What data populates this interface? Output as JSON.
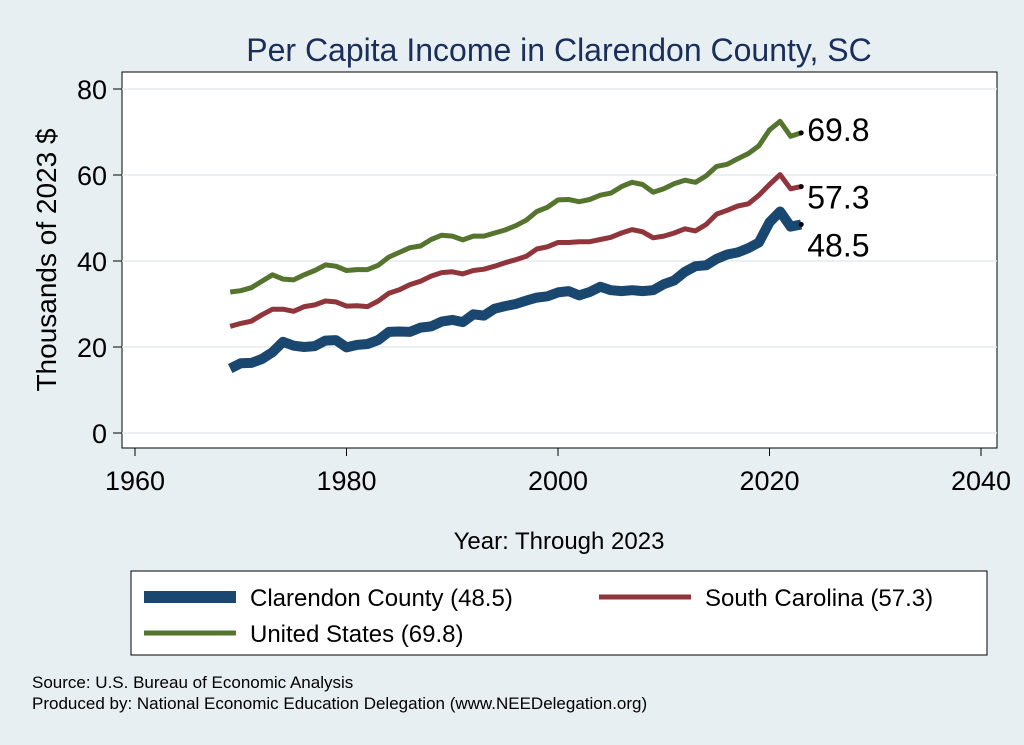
{
  "chart_data": {
    "type": "line",
    "title": "Per Capita Income in Clarendon County, SC",
    "xlabel": "Year: Through 2023",
    "ylabel": "Thousands of 2023 $",
    "xlim": [
      1960,
      2040
    ],
    "ylim": [
      0,
      80
    ],
    "x_ticks": [
      "1960",
      "1980",
      "2000",
      "2020",
      "2040"
    ],
    "y_ticks": [
      "0",
      "20",
      "40",
      "60",
      "80"
    ],
    "grid": true,
    "x": [
      1969,
      1970,
      1971,
      1972,
      1973,
      1974,
      1975,
      1976,
      1977,
      1978,
      1979,
      1980,
      1981,
      1982,
      1983,
      1984,
      1985,
      1986,
      1987,
      1988,
      1989,
      1990,
      1991,
      1992,
      1993,
      1994,
      1995,
      1996,
      1997,
      1998,
      1999,
      2000,
      2001,
      2002,
      2003,
      2004,
      2005,
      2006,
      2007,
      2008,
      2009,
      2010,
      2011,
      2012,
      2013,
      2014,
      2015,
      2016,
      2017,
      2018,
      2019,
      2020,
      2021,
      2022,
      2023
    ],
    "series": [
      {
        "name": "Clarendon County",
        "color": "#1a476f",
        "end_label": "48.5",
        "values": [
          15.0,
          16.2,
          16.3,
          17.2,
          18.8,
          21.2,
          20.3,
          20.0,
          20.2,
          21.5,
          21.6,
          19.9,
          20.5,
          20.7,
          21.6,
          23.5,
          23.6,
          23.5,
          24.5,
          24.8,
          25.9,
          26.3,
          25.8,
          27.6,
          27.3,
          28.9,
          29.5,
          30.0,
          30.8,
          31.5,
          31.8,
          32.7,
          33.0,
          32.0,
          32.8,
          34.0,
          33.2,
          33.0,
          33.2,
          33.0,
          33.2,
          34.6,
          35.5,
          37.5,
          38.8,
          39.0,
          40.5,
          41.5,
          42.0,
          43.0,
          44.3,
          49.0,
          51.5,
          48.0,
          48.5
        ]
      },
      {
        "name": "South Carolina",
        "color": "#90353b",
        "end_label": "57.3",
        "values": [
          24.8,
          25.5,
          26.0,
          27.5,
          28.8,
          28.8,
          28.3,
          29.4,
          29.8,
          30.7,
          30.5,
          29.5,
          29.6,
          29.4,
          30.7,
          32.5,
          33.3,
          34.5,
          35.3,
          36.5,
          37.3,
          37.5,
          37.0,
          37.8,
          38.1,
          38.8,
          39.6,
          40.3,
          41.1,
          42.8,
          43.3,
          44.3,
          44.3,
          44.5,
          44.5,
          45.0,
          45.5,
          46.5,
          47.3,
          46.8,
          45.4,
          45.8,
          46.5,
          47.5,
          47.0,
          48.5,
          50.9,
          51.8,
          52.8,
          53.3,
          55.3,
          57.8,
          60.1,
          56.8,
          57.3
        ]
      },
      {
        "name": "United States",
        "color": "#55752f",
        "end_label": "69.8",
        "values": [
          32.8,
          33.1,
          33.8,
          35.3,
          36.8,
          35.8,
          35.6,
          36.8,
          37.8,
          39.1,
          38.8,
          37.8,
          38.0,
          38.0,
          39.0,
          40.9,
          42.0,
          43.1,
          43.5,
          45.0,
          46.0,
          45.8,
          44.9,
          45.8,
          45.8,
          46.5,
          47.2,
          48.2,
          49.5,
          51.5,
          52.5,
          54.2,
          54.3,
          53.8,
          54.3,
          55.3,
          55.8,
          57.3,
          58.3,
          57.8,
          56.0,
          56.8,
          58.0,
          58.8,
          58.3,
          59.8,
          62.0,
          62.5,
          63.8,
          65.0,
          66.8,
          70.5,
          72.5,
          69.0,
          69.8
        ]
      }
    ],
    "legend": [
      {
        "label": "Clarendon County (48.5)",
        "color": "#1a476f",
        "width": "thick"
      },
      {
        "label": "South Carolina (57.3)",
        "color": "#90353b",
        "width": "normal"
      },
      {
        "label": "United States (69.8)",
        "color": "#55752f",
        "width": "normal"
      }
    ]
  },
  "footer": {
    "source": "Source: U.S. Bureau of Economic Analysis",
    "produced_by": "Produced by: National Economic Education Delegation (www.NEEDelegation.org)"
  }
}
